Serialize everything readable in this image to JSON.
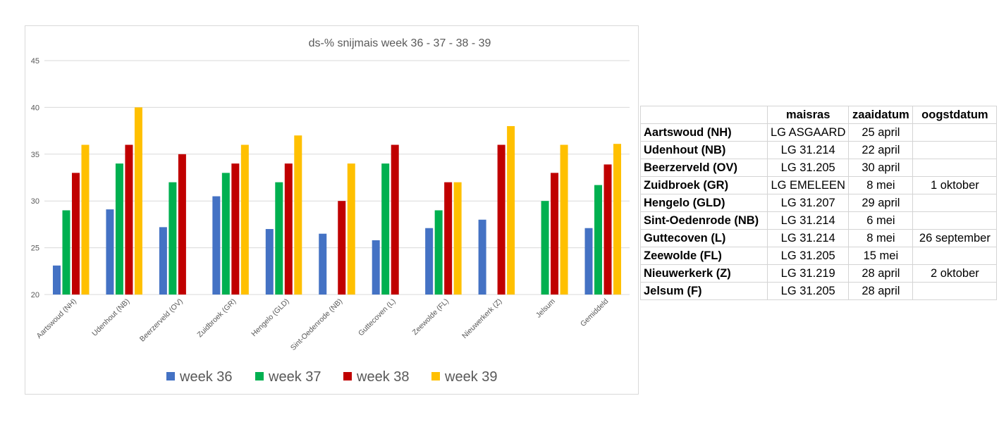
{
  "chart_data": {
    "type": "bar",
    "title": "ds-% snijmais week 36 - 37 - 38 - 39",
    "xlabel": "",
    "ylabel": "",
    "ylim": [
      20,
      45
    ],
    "yticks": [
      20,
      25,
      30,
      35,
      40,
      45
    ],
    "grid": true,
    "legend_position": "bottom",
    "categories": [
      "Aartswoud (NH)",
      "Udenhout (NB)",
      "Beerzerveld (OV)",
      "Zuidbroek (GR)",
      "Hengelo (GLD)",
      "Sint-Oedenrode (NB)",
      "Guttecoven (L)",
      "Zeewolde (FL)",
      "Nieuwerkerk (Z)",
      "Jelsum",
      "Gemiddeld"
    ],
    "series": [
      {
        "name": "week 36",
        "color": "#4472c4",
        "values": [
          23.1,
          29.1,
          27.2,
          30.5,
          27.0,
          26.5,
          25.8,
          27.1,
          28.0,
          null,
          27.1
        ]
      },
      {
        "name": "week 37",
        "color": "#00b050",
        "values": [
          29.0,
          34.0,
          32.0,
          33.0,
          32.0,
          null,
          34.0,
          29.0,
          null,
          30.0,
          31.7
        ]
      },
      {
        "name": "week 38",
        "color": "#c00000",
        "values": [
          33.0,
          36.0,
          35.0,
          34.0,
          34.0,
          30.0,
          36.0,
          32.0,
          36.0,
          33.0,
          33.9
        ]
      },
      {
        "name": "week 39",
        "color": "#ffc000",
        "values": [
          36.0,
          40.0,
          null,
          36.0,
          37.0,
          34.0,
          null,
          32.0,
          38.0,
          36.0,
          36.1
        ]
      }
    ]
  },
  "table": {
    "headers": [
      "",
      "maisras",
      "zaaidatum",
      "oogstdatum"
    ],
    "rows": [
      [
        "Aartswoud (NH)",
        "LG ASGAARD",
        "25 april",
        ""
      ],
      [
        "Udenhout (NB)",
        "LG 31.214",
        "22 april",
        ""
      ],
      [
        "Beerzerveld (OV)",
        "LG 31.205",
        "30 april",
        ""
      ],
      [
        "Zuidbroek (GR)",
        "LG EMELEEN",
        "8 mei",
        "1 oktober"
      ],
      [
        "Hengelo (GLD)",
        "LG 31.207",
        "29 april",
        ""
      ],
      [
        "Sint-Oedenrode (NB)",
        "LG 31.214",
        "6 mei",
        ""
      ],
      [
        "Guttecoven (L)",
        "LG 31.214",
        "8 mei",
        "26 september"
      ],
      [
        "Zeewolde (FL)",
        "LG 31.205",
        "15 mei",
        ""
      ],
      [
        "Nieuwerkerk (Z)",
        "LG 31.219",
        "28 april",
        "2 oktober"
      ],
      [
        "Jelsum (F)",
        "LG 31.205",
        "28 april",
        ""
      ]
    ]
  }
}
